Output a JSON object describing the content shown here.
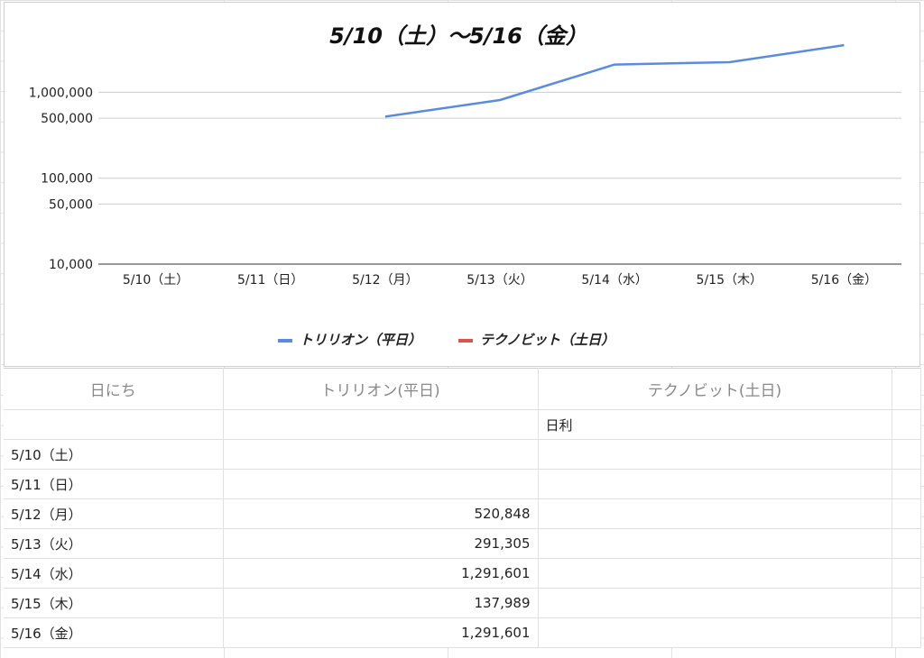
{
  "chart_data": {
    "type": "line",
    "title": "5/10（土）〜5/16（金）",
    "categories": [
      "5/10（土）",
      "5/11（日）",
      "5/12（月）",
      "5/13（火）",
      "5/14（水）",
      "5/15（木）",
      "5/16（金）"
    ],
    "y_scale": "log",
    "y_ticks": [
      10000,
      50000,
      100000,
      500000,
      1000000
    ],
    "y_tick_labels": [
      "10,000",
      "50,000",
      "100,000",
      "500,000",
      "1,000,000"
    ],
    "ylim": [
      10000,
      4000000
    ],
    "grid": true,
    "legend_position": "bottom",
    "series": [
      {
        "name": "トリリオン（平日）",
        "color": "#5b8bdc",
        "values": [
          null,
          null,
          520848,
          812153,
          2103754,
          2241743,
          3533344
        ]
      },
      {
        "name": "テクノビット（土日）",
        "color": "#d9534f",
        "values": [
          null,
          null,
          null,
          null,
          null,
          null,
          null
        ]
      }
    ]
  },
  "table": {
    "headers": [
      "日にち",
      "トリリオン(平日)",
      "テクノビット(土日)"
    ],
    "subheader": [
      "",
      "",
      "日利"
    ],
    "rows": [
      {
        "date": "5/10（土）",
        "a": "",
        "b": ""
      },
      {
        "date": "5/11（日）",
        "a": "",
        "b": ""
      },
      {
        "date": "5/12（月）",
        "a": "520,848",
        "b": ""
      },
      {
        "date": "5/13（火）",
        "a": "291,305",
        "b": ""
      },
      {
        "date": "5/14（水）",
        "a": "1,291,601",
        "b": ""
      },
      {
        "date": "5/15（木）",
        "a": "137,989",
        "b": ""
      },
      {
        "date": "5/16（金）",
        "a": "1,291,601",
        "b": ""
      }
    ]
  }
}
